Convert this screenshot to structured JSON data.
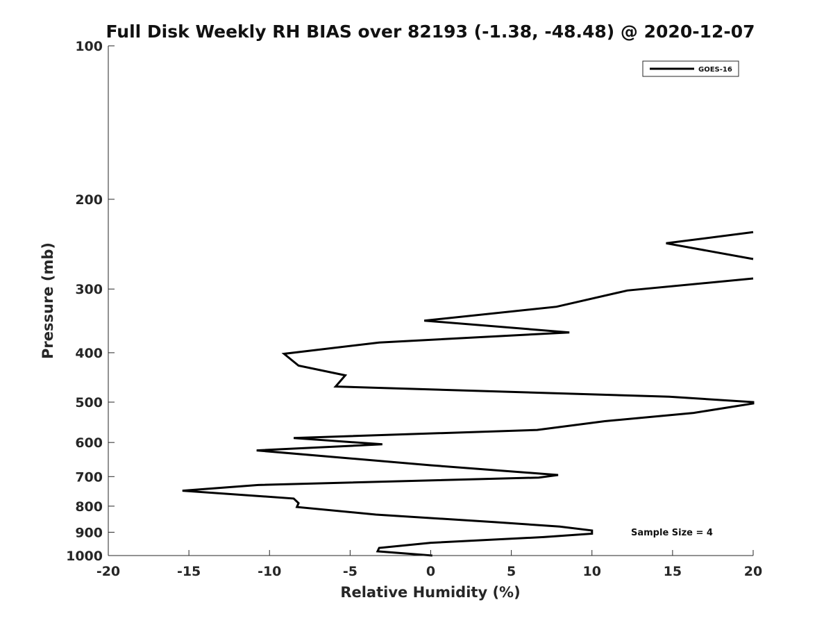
{
  "chart_data": {
    "type": "line",
    "title": "Full Disk Weekly RH BIAS over 82193 (-1.38, -48.48) @ 2020-12-07",
    "xlabel": "Relative Humidity (%)",
    "ylabel": "Pressure (mb)",
    "xlim": [
      -20,
      20
    ],
    "ylim": [
      1000,
      100
    ],
    "yscale": "log",
    "y_reversed": true,
    "grid": false,
    "legend_position": "top-right",
    "x_ticks": [
      -20,
      -15,
      -10,
      -5,
      0,
      5,
      10,
      15,
      20
    ],
    "y_ticks": [
      100,
      200,
      300,
      400,
      500,
      600,
      700,
      800,
      900,
      1000
    ],
    "series": [
      {
        "name": "GOES-16",
        "color": "#000000",
        "x": [
          20,
          14.6,
          20,
          null,
          20,
          12.2,
          7.8,
          -0.4,
          8.6,
          -3.2,
          -9.1,
          -8.2,
          -5.3,
          -5.9,
          14.8,
          20,
          20,
          16.3,
          10.8,
          6.6,
          -8.5,
          -3.0,
          -10.8,
          0,
          7.9,
          6.7,
          -10.7,
          -15.4,
          -8.5,
          -8.2,
          -8.3,
          -3.4,
          4.0,
          8.0,
          10.0,
          10.0,
          7.0,
          0,
          -3.2,
          -3.3,
          0.1
        ],
        "y": [
          232,
          244,
          262,
          null,
          286,
          302,
          325,
          346,
          365,
          382,
          402,
          424,
          443,
          466,
          488,
          500,
          503,
          525,
          545,
          567,
          588,
          605,
          622,
          665,
          695,
          703,
          727,
          746,
          773,
          789,
          803,
          831,
          860,
          877,
          893,
          906,
          920,
          944,
          966,
          981,
          1000
        ]
      }
    ],
    "annotations": [
      "Sample Size = 4"
    ]
  }
}
